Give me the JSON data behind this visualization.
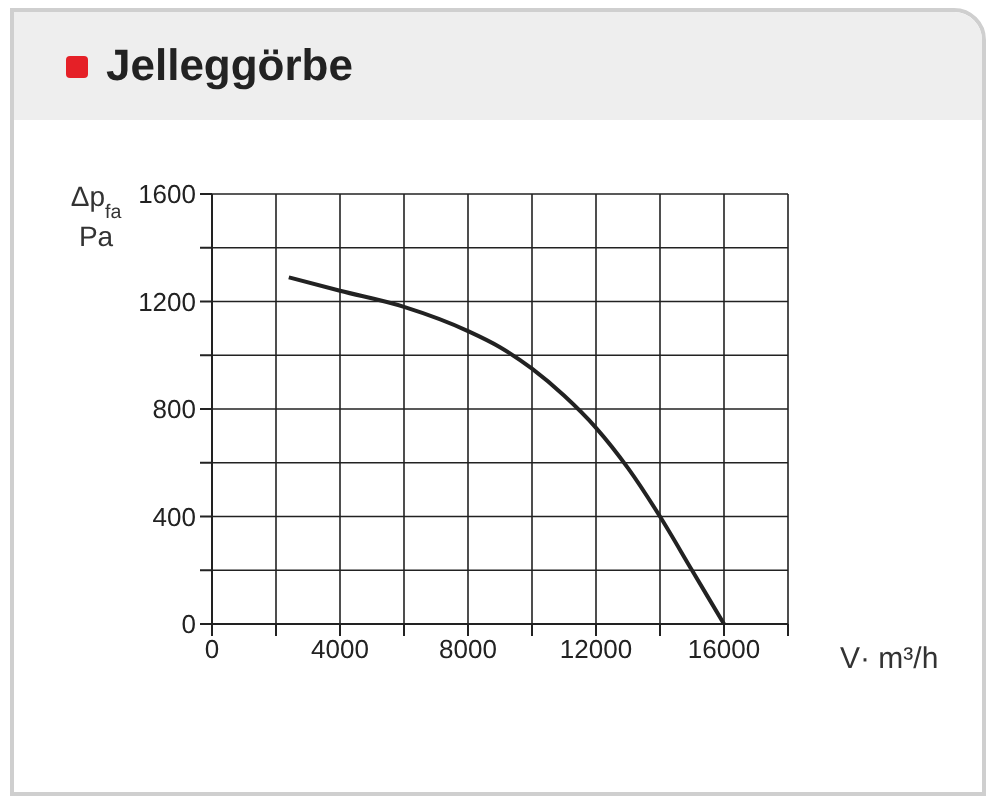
{
  "chart_data": {
    "type": "line",
    "title": "Jelleggörbe",
    "xlabel": "V· m³/h",
    "ylabel": "Δp$_{fa}$ Pa",
    "x": [
      2400,
      4000,
      6000,
      8000,
      9000,
      10000,
      11000,
      12000,
      13000,
      14000,
      15000,
      16000
    ],
    "series": [
      {
        "color": "#222222",
        "values": [
          1290,
          1240,
          1180,
          1090,
          1030,
          950,
          850,
          730,
          580,
          400,
          200,
          0
        ]
      }
    ],
    "xlim": [
      0,
      18000
    ],
    "xticks": [
      0,
      {
        "value": 2000,
        "label": null
      },
      4000,
      {
        "value": 6000,
        "label": null
      },
      8000,
      {
        "value": 10000,
        "label": null
      },
      12000,
      {
        "value": 14000,
        "label": null
      },
      16000,
      {
        "value": 18000,
        "label": null
      }
    ],
    "ylim": [
      0,
      1600
    ],
    "yticks": [
      0,
      {
        "value": 200,
        "label": null
      },
      400,
      {
        "value": 600,
        "label": null
      },
      800,
      {
        "value": 1000,
        "label": null
      },
      1200,
      {
        "value": 1400,
        "label": null
      },
      1600
    ],
    "grid": true,
    "legend": false,
    "marker": "none",
    "line_style": "solid"
  }
}
